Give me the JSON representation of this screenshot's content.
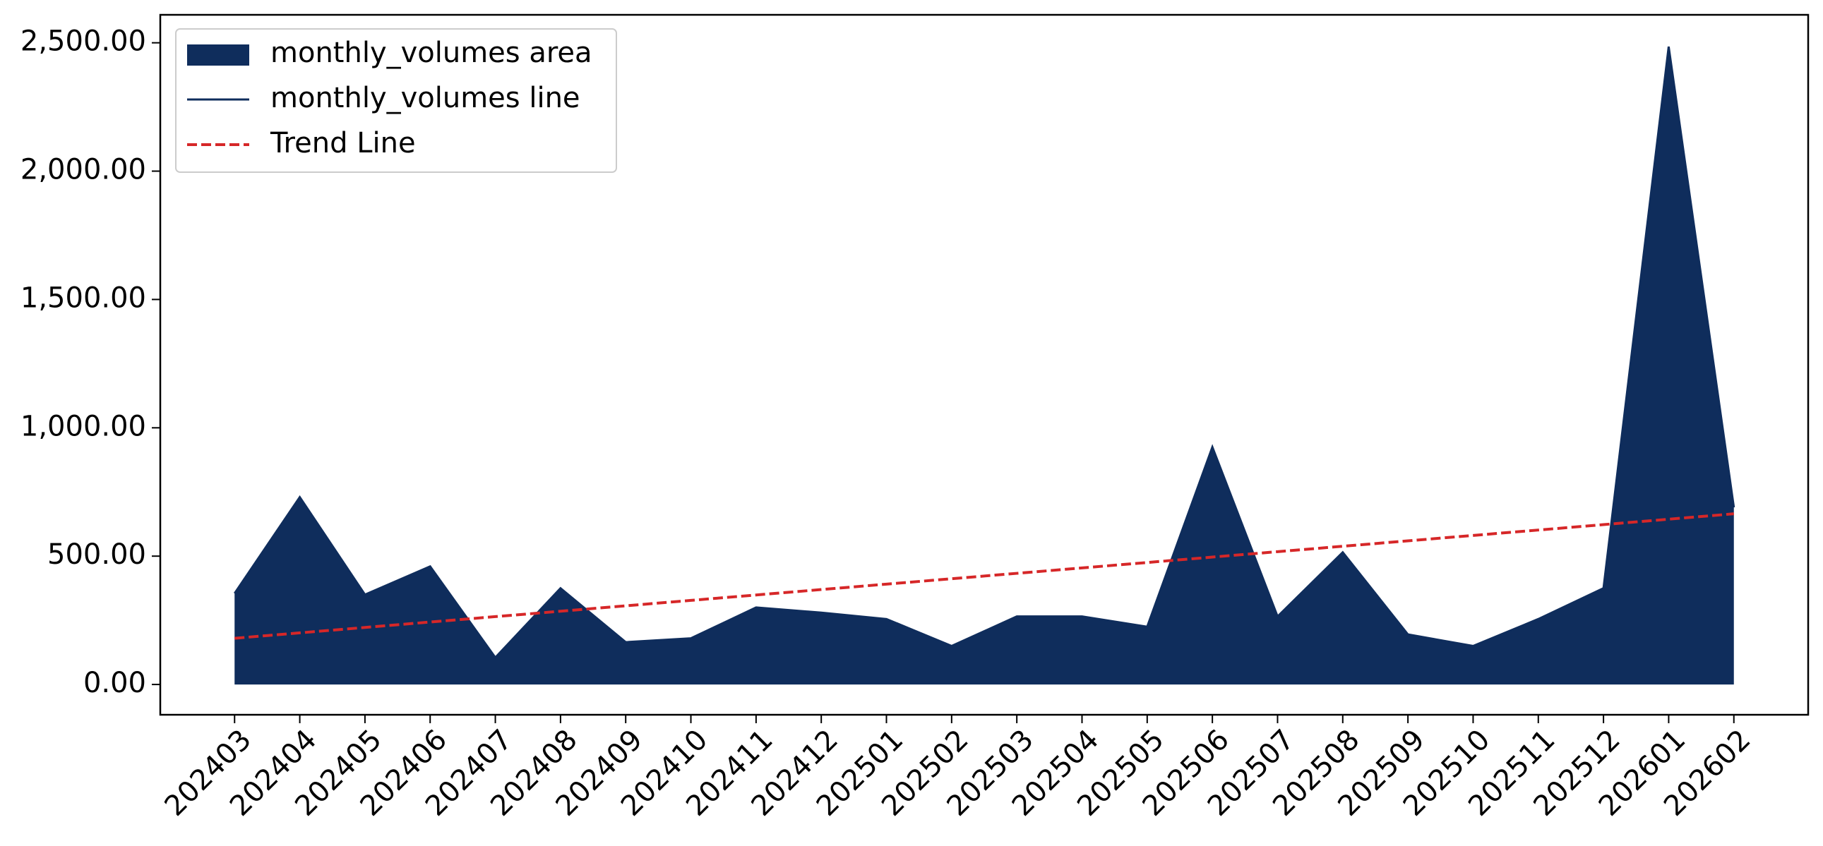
{
  "chart_data": {
    "type": "area",
    "categories": [
      "202403",
      "202404",
      "202405",
      "202406",
      "202407",
      "202408",
      "202409",
      "202410",
      "202411",
      "202412",
      "202501",
      "202502",
      "202503",
      "202504",
      "202505",
      "202506",
      "202507",
      "202508",
      "202509",
      "202510",
      "202511",
      "202512",
      "202601",
      "202602"
    ],
    "series": [
      {
        "name": "monthly_volumes area",
        "style": "area",
        "color": "#0f2d5c",
        "values": [
          355,
          730,
          350,
          460,
          105,
          375,
          165,
          180,
          300,
          280,
          255,
          150,
          265,
          265,
          225,
          925,
          265,
          515,
          195,
          150,
          255,
          375,
          2485,
          690
        ]
      },
      {
        "name": "monthly_volumes line",
        "style": "line",
        "color": "#0f2d5c",
        "values": [
          355,
          730,
          350,
          460,
          105,
          375,
          165,
          180,
          300,
          280,
          255,
          150,
          265,
          265,
          225,
          925,
          265,
          515,
          195,
          150,
          255,
          375,
          2485,
          690
        ]
      },
      {
        "name": "Trend Line",
        "style": "dashed",
        "color": "#d62728",
        "values": [
          180,
          201.1,
          222.2,
          243.3,
          264.3,
          285.4,
          306.5,
          327.6,
          348.7,
          369.8,
          390.9,
          412,
          433,
          454.1,
          475.2,
          496.3,
          517.4,
          538.5,
          559.6,
          580.7,
          601.7,
          622.8,
          643.9,
          665
        ]
      }
    ],
    "ylim": [
      -118,
      2609
    ],
    "yticks": [
      {
        "value": 0,
        "label": "0.00"
      },
      {
        "value": 500,
        "label": "500.00"
      },
      {
        "value": 1000,
        "label": "1,000.00"
      },
      {
        "value": 1500,
        "label": "1,500.00"
      },
      {
        "value": 2000,
        "label": "2,000.00"
      },
      {
        "value": 2500,
        "label": "2,500.00"
      }
    ],
    "legend": "upper left"
  }
}
